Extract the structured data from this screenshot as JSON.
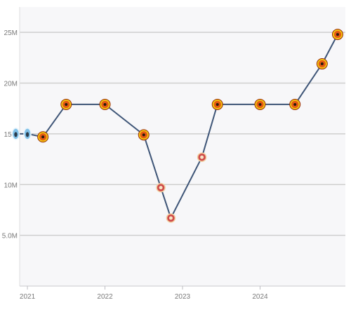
{
  "chart_data": {
    "type": "line",
    "x": [
      2020.85,
      2021.0,
      2021.2,
      2021.5,
      2022.0,
      2022.5,
      2022.72,
      2022.85,
      2023.25,
      2023.45,
      2024.0,
      2024.45,
      2024.8,
      2025.0
    ],
    "values": [
      15.0,
      15.0,
      14.7,
      17.9,
      17.9,
      14.9,
      9.7,
      6.7,
      12.7,
      17.9,
      17.9,
      17.9,
      21.9,
      24.8
    ],
    "marker_types": [
      "club-b",
      "club-b",
      "club-a",
      "club-a",
      "club-a",
      "club-a",
      "club-c",
      "club-c",
      "club-c",
      "club-a",
      "club-a",
      "club-a",
      "club-a",
      "club-a"
    ],
    "xticks": [
      2021,
      2022,
      2023,
      2024
    ],
    "xtick_labels": [
      "2021",
      "2022",
      "2023",
      "2024"
    ],
    "yticks": [
      5,
      10,
      15,
      20,
      25
    ],
    "ytick_labels": [
      "5.0M",
      "10M",
      "15M",
      "20M",
      "25M"
    ],
    "xlim": [
      2020.9,
      2025.1
    ],
    "ylim": [
      0,
      27.5
    ],
    "grid": true,
    "colors": {
      "line": "#3e5577",
      "grid": "#cfcfcf",
      "plot_bg": "#f7f7f9",
      "tick_text": "#7a7a7a",
      "club_a_fill": "#e55a12",
      "club_a_ring": "#f2c811",
      "club_b_fill": "#7fc0e8",
      "club_b_ring": "#e8f4fb",
      "club_c_fill": "#cf4a4a",
      "club_c_ring": "#f1d0a0"
    }
  }
}
